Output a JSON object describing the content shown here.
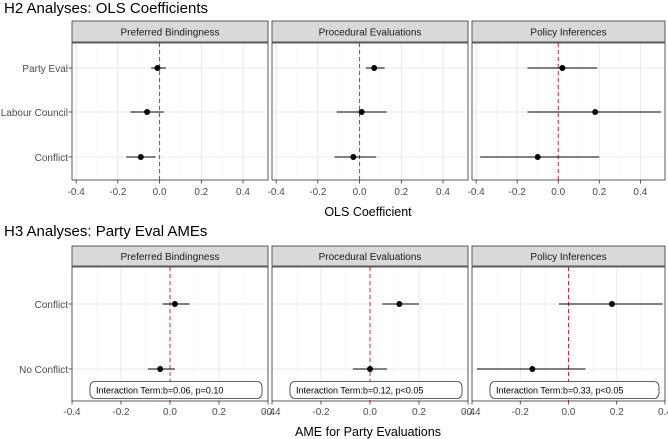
{
  "chart_data": [
    {
      "type": "forest",
      "title": "H2 Analyses: OLS Coefficients",
      "xlabel": "OLS Coefficient",
      "xlim": [
        -0.42,
        0.52
      ],
      "xticks": [
        -0.4,
        -0.2,
        0.0,
        0.2,
        0.4
      ],
      "xtick_labels": [
        "-0.4",
        "-0.2",
        "0.0",
        "0.2",
        "0.4"
      ],
      "reference_line": 0,
      "categories": [
        "Party Eval",
        "Labour Council",
        "Conflict"
      ],
      "facets": [
        {
          "name": "Preferred Bindingness",
          "points": [
            {
              "label": "Party Eval",
              "estimate": -0.01,
              "low": -0.04,
              "high": 0.03
            },
            {
              "label": "Labour Council",
              "estimate": -0.06,
              "low": -0.14,
              "high": 0.02
            },
            {
              "label": "Conflict",
              "estimate": -0.09,
              "low": -0.16,
              "high": -0.02
            }
          ]
        },
        {
          "name": "Procedural Evaluations",
          "points": [
            {
              "label": "Party Eval",
              "estimate": 0.07,
              "low": 0.03,
              "high": 0.12
            },
            {
              "label": "Labour Council",
              "estimate": 0.01,
              "low": -0.11,
              "high": 0.13
            },
            {
              "label": "Conflict",
              "estimate": -0.03,
              "low": -0.12,
              "high": 0.08
            }
          ]
        },
        {
          "name": "Policy Inferences",
          "points": [
            {
              "label": "Party Eval",
              "estimate": 0.02,
              "low": -0.15,
              "high": 0.19
            },
            {
              "label": "Labour Council",
              "estimate": 0.18,
              "low": -0.15,
              "high": 0.5
            },
            {
              "label": "Conflict",
              "estimate": -0.1,
              "low": -0.38,
              "high": 0.2
            }
          ]
        }
      ]
    },
    {
      "type": "forest",
      "title": "H3 Analyses: Party Eval AMEs",
      "xlabel": "AME for Party Evaluations",
      "xlim": [
        -0.4,
        0.4
      ],
      "xticks": [
        -0.4,
        -0.2,
        0.0,
        0.2,
        0.4
      ],
      "xtick_labels": [
        "-0.4",
        "-0.2",
        "0.0",
        "0.2",
        "0.4"
      ],
      "reference_line": 0,
      "categories": [
        "Conflict",
        "No Conflict"
      ],
      "facets": [
        {
          "name": "Preferred Bindingness",
          "annotation": "Interaction Term:b=0.06, p=0.10",
          "points": [
            {
              "label": "Conflict",
              "estimate": 0.02,
              "low": -0.03,
              "high": 0.08
            },
            {
              "label": "No Conflict",
              "estimate": -0.04,
              "low": -0.09,
              "high": 0.02
            }
          ]
        },
        {
          "name": "Procedural Evaluations",
          "annotation": "Interaction Term:b=0.12, p<0.05",
          "points": [
            {
              "label": "Conflict",
              "estimate": 0.12,
              "low": 0.05,
              "high": 0.2
            },
            {
              "label": "No Conflict",
              "estimate": 0.0,
              "low": -0.07,
              "high": 0.07
            }
          ]
        },
        {
          "name": "Policy Inferences",
          "annotation": "Interaction Term:b=0.33, p<0.05",
          "points": [
            {
              "label": "Conflict",
              "estimate": 0.18,
              "low": -0.04,
              "high": 0.39
            },
            {
              "label": "No Conflict",
              "estimate": -0.15,
              "low": -0.38,
              "high": 0.07
            }
          ]
        }
      ]
    }
  ]
}
